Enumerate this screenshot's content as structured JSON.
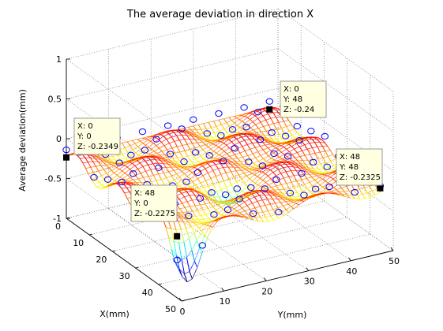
{
  "chart_data": {
    "type": "surface3d",
    "title": "The average deviation in direction X",
    "xlabel": "X(mm)",
    "ylabel": "Y(mm)",
    "zlabel": "Average deviation(mm)",
    "xlim": [
      0,
      50
    ],
    "ylim": [
      0,
      50
    ],
    "zlim": [
      -1,
      1
    ],
    "x_ticks": [
      "0",
      "10",
      "20",
      "30",
      "40",
      "50"
    ],
    "y_ticks": [
      "0",
      "10",
      "20",
      "30",
      "40",
      "50"
    ],
    "z_ticks": [
      "-1",
      "-0.5",
      "0",
      "0.5",
      "1"
    ],
    "grid": true,
    "colormap": "jet",
    "measured_points_marker": "circle",
    "measured_points_color": "#0000ff",
    "datatips": [
      {
        "x": 0,
        "y": 0,
        "z": -0.2349,
        "lines": [
          "X: 0",
          "Y: 0",
          "Z: -0.2349"
        ]
      },
      {
        "x": 0,
        "y": 48,
        "z": -0.24,
        "lines": [
          "X: 0",
          "Y: 48",
          "Z: -0.24"
        ]
      },
      {
        "x": 48,
        "y": 0,
        "z": -0.2275,
        "lines": [
          "X: 48",
          "Y: 0",
          "Z: -0.2275"
        ]
      },
      {
        "x": 48,
        "y": 48,
        "z": -0.2325,
        "lines": [
          "X: 48",
          "Y: 48",
          "Z: -0.2325"
        ]
      }
    ]
  }
}
